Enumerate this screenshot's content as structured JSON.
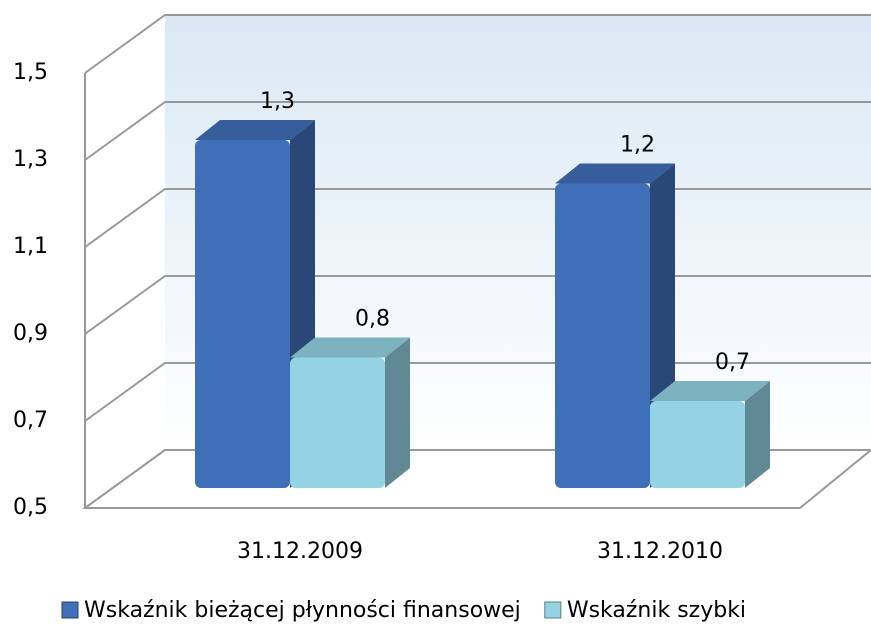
{
  "chart_data": {
    "type": "bar",
    "categories": [
      "31.12.2009",
      "31.12.2010"
    ],
    "series": [
      {
        "name": "Wskaźnik bieżącej płynności finansowej",
        "color": "#3f6fb8",
        "values": [
          1.3,
          1.2
        ],
        "value_labels": [
          "1,3",
          "1,2"
        ]
      },
      {
        "name": "Wskaźnik szybki",
        "color": "#93d3e3",
        "values": [
          0.8,
          0.7
        ],
        "value_labels": [
          "0,8",
          "0,7"
        ]
      }
    ],
    "ylim": [
      0.5,
      1.5
    ],
    "yticks": [
      {
        "value": 0.5,
        "label": "0,5"
      },
      {
        "value": 0.7,
        "label": "0,7"
      },
      {
        "value": 0.9,
        "label": "0,9"
      },
      {
        "value": 1.1,
        "label": "1,1"
      },
      {
        "value": 1.3,
        "label": "1,3"
      },
      {
        "value": 1.5,
        "label": "1,5"
      }
    ],
    "grid": true,
    "legend": "bottom"
  }
}
